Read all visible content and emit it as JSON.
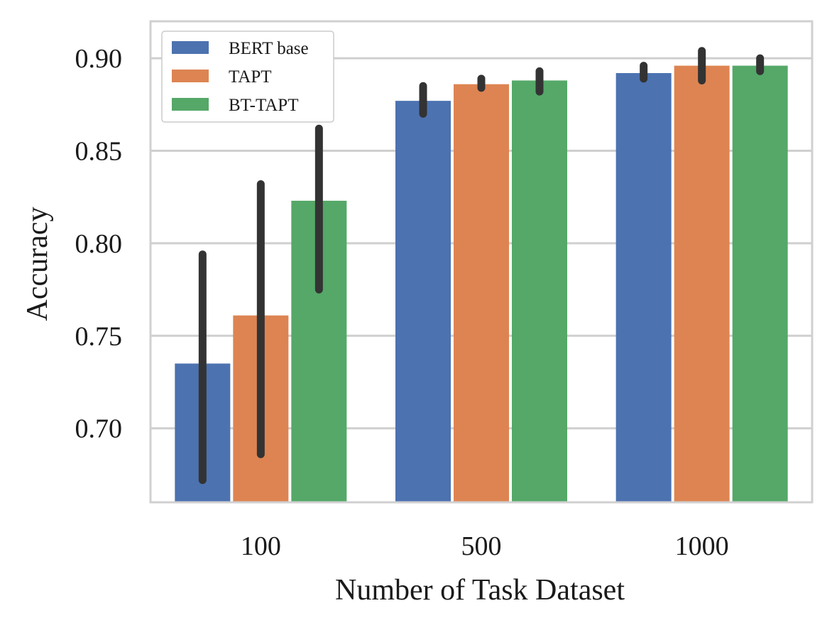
{
  "chart_data": {
    "type": "bar",
    "title": "",
    "xlabel": "Number of Task Dataset",
    "ylabel": "Accuracy",
    "categories": [
      "100",
      "500",
      "1000"
    ],
    "ylim": [
      0.66,
      0.92
    ],
    "yticks": [
      0.7,
      0.75,
      0.8,
      0.85,
      0.9
    ],
    "ytick_labels": [
      "0.70",
      "0.75",
      "0.80",
      "0.85",
      "0.90"
    ],
    "grid": true,
    "legend_position": "top-left",
    "series": [
      {
        "name": "BERT base",
        "color": "#4c72b0",
        "values": [
          0.735,
          0.877,
          0.892
        ],
        "error_low": [
          0.672,
          0.87,
          0.889
        ],
        "error_high": [
          0.794,
          0.885,
          0.896
        ]
      },
      {
        "name": "TAPT",
        "color": "#dd8452",
        "values": [
          0.761,
          0.886,
          0.896
        ],
        "error_low": [
          0.686,
          0.884,
          0.888
        ],
        "error_high": [
          0.832,
          0.889,
          0.904
        ]
      },
      {
        "name": "BT-TAPT",
        "color": "#55a868",
        "values": [
          0.823,
          0.888,
          0.896
        ],
        "error_low": [
          0.775,
          0.882,
          0.893
        ],
        "error_high": [
          0.862,
          0.893,
          0.9
        ]
      }
    ],
    "colors": {
      "grid": "#cfcfcf",
      "frame": "#d0d0d0",
      "errorbar": "#333333"
    }
  }
}
